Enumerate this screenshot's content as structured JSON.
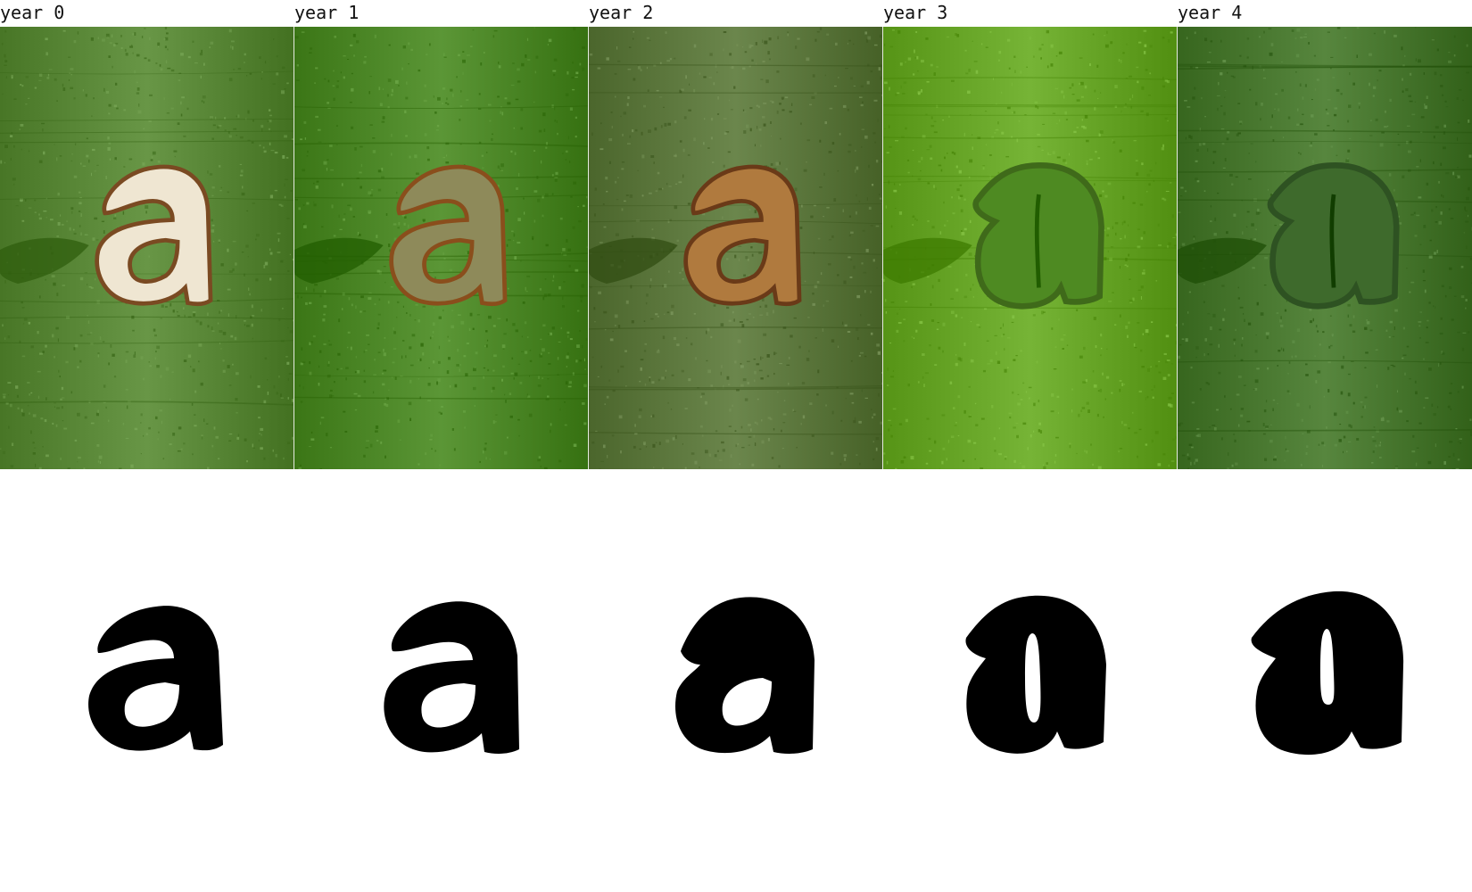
{
  "columns": [
    {
      "label": "year 0",
      "bark_color": "#5c8a3a",
      "cut_color": "#efe6d2",
      "rim_color": "#7a4a22",
      "stage": "fresh-cut"
    },
    {
      "label": "year 1",
      "bark_color": "#4f8a2a",
      "cut_color": "#8e8a5a",
      "rim_color": "#8a4e1c",
      "stage": "healing"
    },
    {
      "label": "year 2",
      "bark_color": "#5f7a40",
      "cut_color": "#b07a3e",
      "rim_color": "#6a3a18",
      "stage": "scarred"
    },
    {
      "label": "year 3",
      "bark_color": "#6aa82a",
      "cut_color": "#4e8a22",
      "rim_color": "#3f6a1a",
      "stage": "overgrown"
    },
    {
      "label": "year 4",
      "bark_color": "#4b7a32",
      "cut_color": "#3e6a2c",
      "rim_color": "#2e5222",
      "stage": "closed"
    }
  ],
  "glyph_color": "#000000",
  "icons": [
    "letter-a-glyph"
  ]
}
